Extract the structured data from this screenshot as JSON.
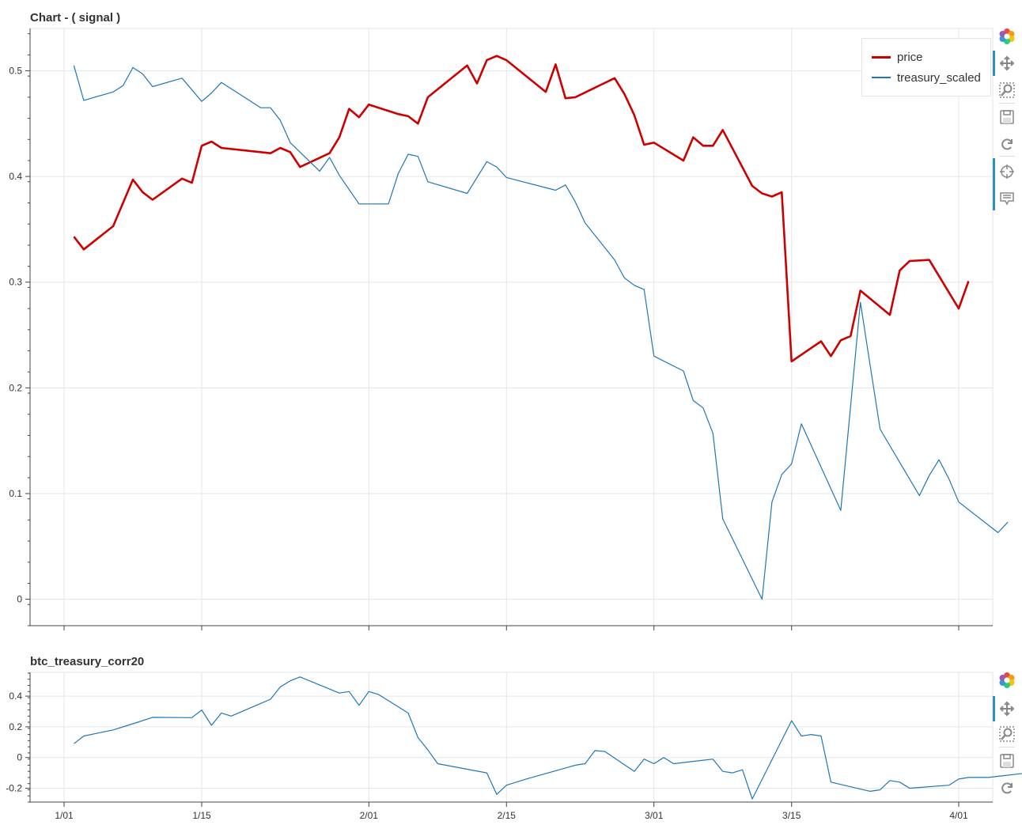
{
  "charts": [
    {
      "title": "Chart - ( signal )",
      "legend": [
        {
          "label": "price",
          "color": "#cc0000"
        },
        {
          "label": "treasury_scaled",
          "color": "#1f77b4"
        }
      ],
      "toolbar": [
        "bokeh-logo-icon",
        "pan-icon",
        "box-zoom-icon",
        "save-icon",
        "reset-icon",
        "crosshair-icon",
        "hover-icon"
      ]
    },
    {
      "title": "btc_treasury_corr20",
      "toolbar": [
        "bokeh-logo-icon",
        "pan-icon",
        "box-zoom-icon",
        "save-icon",
        "reset-icon"
      ]
    }
  ],
  "chart_data": [
    {
      "type": "line",
      "title": "Chart - ( signal )",
      "xlabel": "",
      "ylabel": "",
      "x_ticks": [
        "1/01",
        "1/15",
        "2/01",
        "2/15",
        "3/01",
        "3/15",
        "4/01"
      ],
      "y_ticks": [
        "0",
        "0.1",
        "0.2",
        "0.3",
        "0.4",
        "0.5"
      ],
      "ylim": [
        -0.025,
        0.54
      ],
      "grid": true,
      "legend_position": "top-right",
      "series": [
        {
          "name": "price",
          "color": "#cc0000",
          "points": [
            [
              "1/02",
              0.343
            ],
            [
              "1/03",
              0.331
            ],
            [
              "1/06",
              0.353
            ],
            [
              "1/08",
              0.397
            ],
            [
              "1/09",
              0.385
            ],
            [
              "1/10",
              0.378
            ],
            [
              "1/13",
              0.398
            ],
            [
              "1/14",
              0.394
            ],
            [
              "1/15",
              0.429
            ],
            [
              "1/16",
              0.433
            ],
            [
              "1/17",
              0.427
            ],
            [
              "1/22",
              0.422
            ],
            [
              "1/23",
              0.427
            ],
            [
              "1/24",
              0.423
            ],
            [
              "1/25",
              0.409
            ],
            [
              "1/28",
              0.422
            ],
            [
              "1/29",
              0.437
            ],
            [
              "1/30",
              0.464
            ],
            [
              "1/31",
              0.456
            ],
            [
              "2/01",
              0.468
            ],
            [
              "2/04",
              0.459
            ],
            [
              "2/05",
              0.457
            ],
            [
              "2/06",
              0.45
            ],
            [
              "2/07",
              0.475
            ],
            [
              "2/11",
              0.505
            ],
            [
              "2/12",
              0.488
            ],
            [
              "2/13",
              0.51
            ],
            [
              "2/14",
              0.514
            ],
            [
              "2/15",
              0.51
            ],
            [
              "2/19",
              0.48
            ],
            [
              "2/20",
              0.506
            ],
            [
              "2/21",
              0.474
            ],
            [
              "2/22",
              0.475
            ],
            [
              "2/26",
              0.493
            ],
            [
              "2/27",
              0.478
            ],
            [
              "2/28",
              0.458
            ],
            [
              "2/29",
              0.43
            ],
            [
              "3/01",
              0.432
            ],
            [
              "3/04",
              0.415
            ],
            [
              "3/05",
              0.437
            ],
            [
              "3/06",
              0.429
            ],
            [
              "3/07",
              0.429
            ],
            [
              "3/08",
              0.444
            ],
            [
              "3/11",
              0.391
            ],
            [
              "3/12",
              0.384
            ],
            [
              "3/13",
              0.381
            ],
            [
              "3/14",
              0.385
            ],
            [
              "3/15",
              0.225
            ],
            [
              "3/18",
              0.244
            ],
            [
              "3/19",
              0.23
            ],
            [
              "3/20",
              0.245
            ],
            [
              "3/21",
              0.249
            ],
            [
              "3/22",
              0.292
            ],
            [
              "3/25",
              0.269
            ],
            [
              "3/26",
              0.311
            ],
            [
              "3/27",
              0.32
            ],
            [
              "3/29",
              0.321
            ],
            [
              "4/01",
              0.275
            ],
            [
              "4/02",
              0.301
            ]
          ]
        },
        {
          "name": "treasury_scaled",
          "color": "#1f77b4",
          "points": [
            [
              "1/02",
              0.505
            ],
            [
              "1/03",
              0.472
            ],
            [
              "1/06",
              0.48
            ],
            [
              "1/07",
              0.486
            ],
            [
              "1/08",
              0.503
            ],
            [
              "1/09",
              0.497
            ],
            [
              "1/10",
              0.485
            ],
            [
              "1/13",
              0.493
            ],
            [
              "1/15",
              0.471
            ],
            [
              "1/16",
              0.479
            ],
            [
              "1/17",
              0.489
            ],
            [
              "1/21",
              0.465
            ],
            [
              "1/22",
              0.465
            ],
            [
              "1/23",
              0.453
            ],
            [
              "1/24",
              0.432
            ],
            [
              "1/27",
              0.405
            ],
            [
              "1/28",
              0.418
            ],
            [
              "1/29",
              0.401
            ],
            [
              "1/31",
              0.374
            ],
            [
              "2/03",
              0.374
            ],
            [
              "2/04",
              0.403
            ],
            [
              "2/05",
              0.421
            ],
            [
              "2/06",
              0.419
            ],
            [
              "2/07",
              0.395
            ],
            [
              "2/11",
              0.384
            ],
            [
              "2/13",
              0.414
            ],
            [
              "2/14",
              0.409
            ],
            [
              "2/15",
              0.399
            ],
            [
              "2/20",
              0.387
            ],
            [
              "2/21",
              0.392
            ],
            [
              "2/22",
              0.376
            ],
            [
              "2/23",
              0.356
            ],
            [
              "2/26",
              0.321
            ],
            [
              "2/27",
              0.304
            ],
            [
              "2/28",
              0.297
            ],
            [
              "2/29",
              0.293
            ],
            [
              "3/01",
              0.23
            ],
            [
              "3/04",
              0.216
            ],
            [
              "3/05",
              0.188
            ],
            [
              "3/06",
              0.181
            ],
            [
              "3/07",
              0.157
            ],
            [
              "3/08",
              0.076
            ],
            [
              "3/12",
              0.0
            ],
            [
              "3/13",
              0.092
            ],
            [
              "3/14",
              0.118
            ],
            [
              "3/15",
              0.128
            ],
            [
              "3/16",
              0.166
            ],
            [
              "3/20",
              0.084
            ],
            [
              "3/22",
              0.281
            ],
            [
              "3/23",
              0.221
            ],
            [
              "3/24",
              0.161
            ],
            [
              "3/28",
              0.098
            ],
            [
              "3/29",
              0.117
            ],
            [
              "3/30",
              0.132
            ],
            [
              "3/31",
              0.114
            ],
            [
              "4/01",
              0.092
            ],
            [
              "4/05",
              0.063
            ],
            [
              "4/06",
              0.073
            ]
          ]
        }
      ]
    },
    {
      "type": "line",
      "title": "btc_treasury_corr20",
      "xlabel": "",
      "ylabel": "",
      "x_ticks": [
        "1/01",
        "1/15",
        "2/01",
        "2/15",
        "3/01",
        "3/15",
        "4/01"
      ],
      "y_ticks": [
        "-0.2",
        "0",
        "0.2",
        "0.4"
      ],
      "ylim": [
        -0.29,
        0.555
      ],
      "grid": true,
      "series": [
        {
          "name": "",
          "color": "#1f77b4",
          "points": [
            [
              "1/02",
              0.09
            ],
            [
              "1/03",
              0.14
            ],
            [
              "1/06",
              0.18
            ],
            [
              "1/08",
              0.22
            ],
            [
              "1/10",
              0.262
            ],
            [
              "1/14",
              0.26
            ],
            [
              "1/15",
              0.31
            ],
            [
              "1/16",
              0.21
            ],
            [
              "1/17",
              0.29
            ],
            [
              "1/18",
              0.27
            ],
            [
              "1/22",
              0.38
            ],
            [
              "1/23",
              0.46
            ],
            [
              "1/24",
              0.5
            ],
            [
              "1/25",
              0.525
            ],
            [
              "1/29",
              0.42
            ],
            [
              "1/30",
              0.43
            ],
            [
              "1/31",
              0.34
            ],
            [
              "2/01",
              0.43
            ],
            [
              "2/02",
              0.41
            ],
            [
              "2/05",
              0.29
            ],
            [
              "2/06",
              0.13
            ],
            [
              "2/07",
              0.05
            ],
            [
              "2/08",
              -0.04
            ],
            [
              "2/13",
              -0.1
            ],
            [
              "2/14",
              -0.24
            ],
            [
              "2/15",
              -0.18
            ],
            [
              "2/16",
              -0.16
            ],
            [
              "2/17",
              -0.14
            ],
            [
              "2/22",
              -0.05
            ],
            [
              "2/23",
              -0.04
            ],
            [
              "2/24",
              0.045
            ],
            [
              "2/25",
              0.04
            ],
            [
              "2/28",
              -0.09
            ],
            [
              "2/29",
              -0.01
            ],
            [
              "3/01",
              -0.04
            ],
            [
              "3/02",
              0.0
            ],
            [
              "3/03",
              -0.04
            ],
            [
              "3/07",
              -0.01
            ],
            [
              "3/08",
              -0.09
            ],
            [
              "3/09",
              -0.1
            ],
            [
              "3/10",
              -0.08
            ],
            [
              "3/11",
              -0.27
            ],
            [
              "3/15",
              0.24
            ],
            [
              "3/16",
              0.14
            ],
            [
              "3/17",
              0.15
            ],
            [
              "3/18",
              0.14
            ],
            [
              "3/19",
              -0.16
            ],
            [
              "3/23",
              -0.22
            ],
            [
              "3/24",
              -0.21
            ],
            [
              "3/25",
              -0.15
            ],
            [
              "3/26",
              -0.16
            ],
            [
              "3/27",
              -0.2
            ],
            [
              "3/31",
              -0.18
            ],
            [
              "4/01",
              -0.14
            ],
            [
              "4/02",
              -0.13
            ],
            [
              "4/04",
              -0.13
            ],
            [
              "4/08",
              -0.1
            ],
            [
              "4/09",
              -0.09
            ]
          ]
        }
      ]
    }
  ]
}
